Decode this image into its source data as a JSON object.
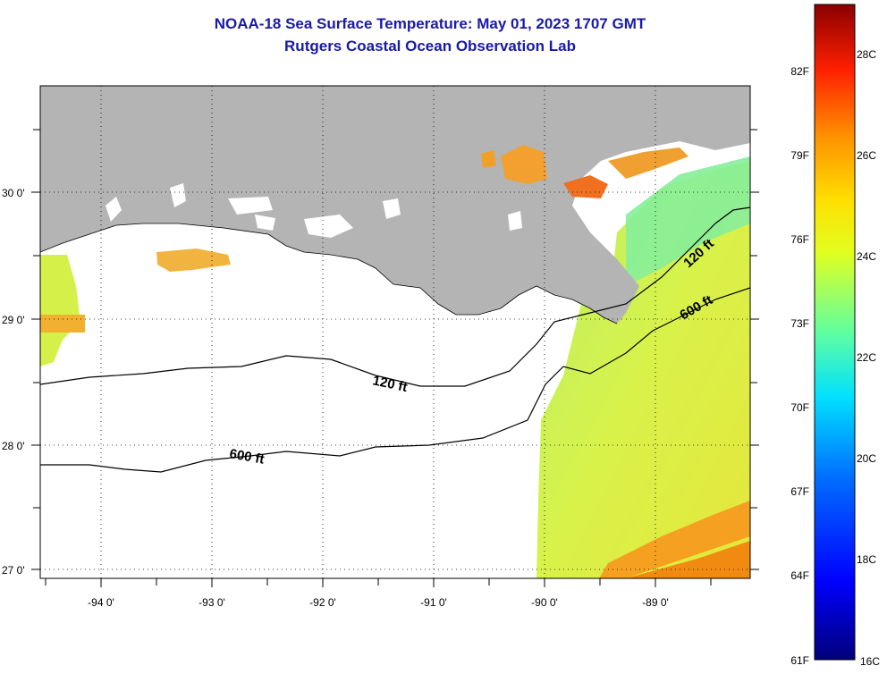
{
  "header": {
    "title": "NOAA-18 Sea Surface Temperature:  May 01, 2023 1707 GMT",
    "subtitle": "Rutgers Coastal Ocean Observation Lab"
  },
  "map": {
    "lon_labels": [
      "-94 0'",
      "-93 0'",
      "-92 0'",
      "-91 0'",
      "-90 0'",
      "-89 0'"
    ],
    "lat_labels": [
      "30 0'",
      "29 0'",
      "28 0'",
      "27 0'"
    ],
    "contours": [
      "120 ft",
      "120 ft",
      "600 ft",
      "600 ft"
    ],
    "colors": {
      "land": "#b4b4b4",
      "cloud": "#ffffff",
      "contour": "#000000"
    }
  },
  "colorbar": {
    "fahrenheit": [
      "82F",
      "79F",
      "76F",
      "73F",
      "70F",
      "67F",
      "64F",
      "61F"
    ],
    "celsius": [
      "28C",
      "26C",
      "24C",
      "22C",
      "20C",
      "18C",
      "16C"
    ],
    "gradient_colors": [
      "#00008b",
      "#0000ff",
      "#0080ff",
      "#00ffff",
      "#80ff80",
      "#ffff00",
      "#ff8000",
      "#ff0000",
      "#8b0000"
    ]
  }
}
